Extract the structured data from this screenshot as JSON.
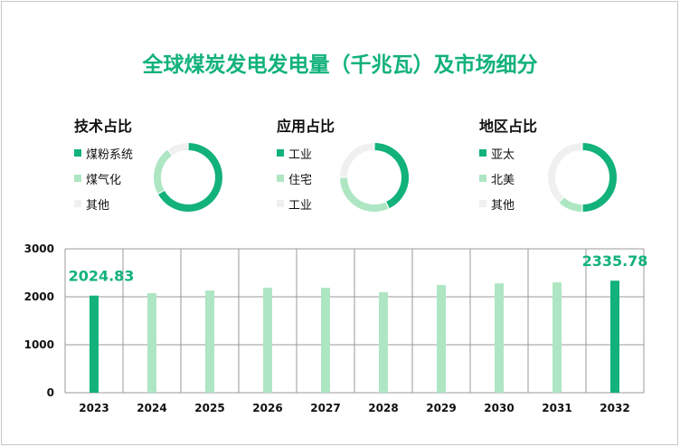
{
  "title": "全球煤炭发电发电量（千兆瓦）及市场细分",
  "colors": {
    "dark": "#12b27a",
    "light": "#aee6c4",
    "other": "#f0f0f0"
  },
  "donuts": [
    {
      "title": "技术占比",
      "items": [
        {
          "label": "煤粉系统",
          "share": 67
        },
        {
          "label": "煤气化",
          "share": 23
        },
        {
          "label": "其他",
          "share": 10
        }
      ]
    },
    {
      "title": "应用占比",
      "items": [
        {
          "label": "工业",
          "share": 43
        },
        {
          "label": "住宅",
          "share": 32
        },
        {
          "label": "工业",
          "share": 25
        }
      ]
    },
    {
      "title": "地区占比",
      "items": [
        {
          "label": "亚太",
          "share": 50
        },
        {
          "label": "北美",
          "share": 12
        },
        {
          "label": "其他",
          "share": 38
        }
      ]
    }
  ],
  "chart_data": {
    "type": "bar",
    "categories": [
      "2023",
      "2024",
      "2025",
      "2026",
      "2027",
      "2028",
      "2029",
      "2030",
      "2031",
      "2032"
    ],
    "values": [
      2024.83,
      2075,
      2130,
      2190,
      2190,
      2095,
      2245,
      2280,
      2300,
      2335.78
    ],
    "data_labels": {
      "0": "2024.83",
      "9": "2335.78"
    },
    "ylim": [
      0,
      3000
    ],
    "yticks": [
      "0",
      "1000",
      "2000",
      "3000"
    ],
    "grid": true
  }
}
